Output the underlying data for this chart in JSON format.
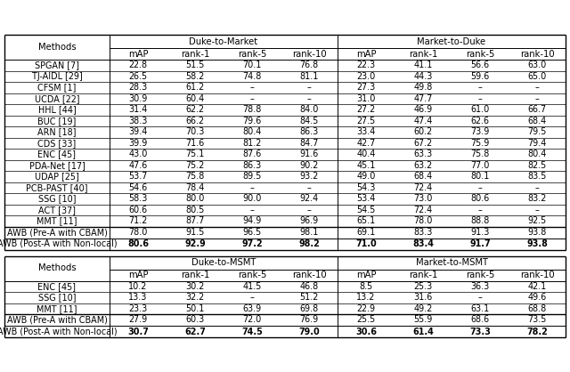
{
  "table1": {
    "group_headers": [
      "Duke-to-Market",
      "Market-to-Duke"
    ],
    "subheader": [
      "mAP",
      "rank-1",
      "rank-5",
      "rank-10",
      "mAP",
      "rank-1",
      "rank-5",
      "rank-10"
    ],
    "methods": [
      "SPGAN [7]",
      "TJ-AIDL [29]",
      "CFSM [1]",
      "UCDA [22]",
      "HHL [44]",
      "BUC [19]",
      "ARN [18]",
      "CDS [33]",
      "ENC [45]",
      "PDA-Net [17]",
      "UDAP [25]",
      "PCB-PAST [40]",
      "SSG [10]",
      "ACT [37]",
      "MMT [11]"
    ],
    "data": [
      [
        "22.8",
        "51.5",
        "70.1",
        "76.8",
        "22.3",
        "41.1",
        "56.6",
        "63.0"
      ],
      [
        "26.5",
        "58.2",
        "74.8",
        "81.1",
        "23.0",
        "44.3",
        "59.6",
        "65.0"
      ],
      [
        "28.3",
        "61.2",
        "–",
        "–",
        "27.3",
        "49.8",
        "–",
        "–"
      ],
      [
        "30.9",
        "60.4",
        "–",
        "–",
        "31.0",
        "47.7",
        "–",
        "–"
      ],
      [
        "31.4",
        "62.2",
        "78.8",
        "84.0",
        "27.2",
        "46.9",
        "61.0",
        "66.7"
      ],
      [
        "38.3",
        "66.2",
        "79.6",
        "84.5",
        "27.5",
        "47.4",
        "62.6",
        "68.4"
      ],
      [
        "39.4",
        "70.3",
        "80.4",
        "86.3",
        "33.4",
        "60.2",
        "73.9",
        "79.5"
      ],
      [
        "39.9",
        "71.6",
        "81.2",
        "84.7",
        "42.7",
        "67.2",
        "75.9",
        "79.4"
      ],
      [
        "43.0",
        "75.1",
        "87.6",
        "91.6",
        "40.4",
        "63.3",
        "75.8",
        "80.4"
      ],
      [
        "47.6",
        "75.2",
        "86.3",
        "90.2",
        "45.1",
        "63.2",
        "77.0",
        "82.5"
      ],
      [
        "53.7",
        "75.8",
        "89.5",
        "93.2",
        "49.0",
        "68.4",
        "80.1",
        "83.5"
      ],
      [
        "54.6",
        "78.4",
        "–",
        "–",
        "54.3",
        "72.4",
        "–",
        "–"
      ],
      [
        "58.3",
        "80.0",
        "90.0",
        "92.4",
        "53.4",
        "73.0",
        "80.6",
        "83.2"
      ],
      [
        "60.6",
        "80.5",
        "–",
        "–",
        "54.5",
        "72.4",
        "–",
        "–"
      ],
      [
        "71.2",
        "87.7",
        "94.9",
        "96.9",
        "65.1",
        "78.0",
        "88.8",
        "92.5"
      ]
    ],
    "awb_methods": [
      "AWB (Pre-A with CBAM)",
      "AWB (Post-A with Non-local)"
    ],
    "awb_data": [
      [
        "78.0",
        "91.5",
        "96.5",
        "98.1",
        "69.1",
        "83.3",
        "91.3",
        "93.8"
      ],
      [
        "80.6",
        "92.9",
        "97.2",
        "98.2",
        "71.0",
        "83.4",
        "91.7",
        "93.8"
      ]
    ],
    "awb_bold": [
      [
        false,
        false,
        false,
        false,
        false,
        false,
        false,
        false
      ],
      [
        true,
        true,
        true,
        true,
        true,
        true,
        true,
        true
      ]
    ]
  },
  "table2": {
    "group_headers": [
      "Duke-to-MSMT",
      "Market-to-MSMT"
    ],
    "subheader": [
      "mAP",
      "rank-1",
      "rank-5",
      "rank-10",
      "mAP",
      "rank-1",
      "rank-5",
      "rank-10"
    ],
    "methods": [
      "ENC [45]",
      "SSG [10]",
      "MMT [11]"
    ],
    "data": [
      [
        "10.2",
        "30.2",
        "41.5",
        "46.8",
        "8.5",
        "25.3",
        "36.3",
        "42.1"
      ],
      [
        "13.3",
        "32.2",
        "–",
        "51.2",
        "13.2",
        "31.6",
        "–",
        "49.6"
      ],
      [
        "23.3",
        "50.1",
        "63.9",
        "69.8",
        "22.9",
        "49.2",
        "63.1",
        "68.8"
      ]
    ],
    "awb_methods": [
      "AWB (Pre-A with CBAM)",
      "AWB (Post-A with Non-local)"
    ],
    "awb_data": [
      [
        "27.9",
        "60.3",
        "72.0",
        "76.9",
        "25.5",
        "55.9",
        "68.6",
        "73.5"
      ],
      [
        "30.7",
        "62.7",
        "74.5",
        "79.0",
        "30.6",
        "61.4",
        "73.3",
        "78.2"
      ]
    ],
    "awb_bold": [
      [
        false,
        false,
        false,
        false,
        false,
        false,
        false,
        false
      ],
      [
        true,
        true,
        true,
        true,
        true,
        true,
        true,
        true
      ]
    ]
  }
}
